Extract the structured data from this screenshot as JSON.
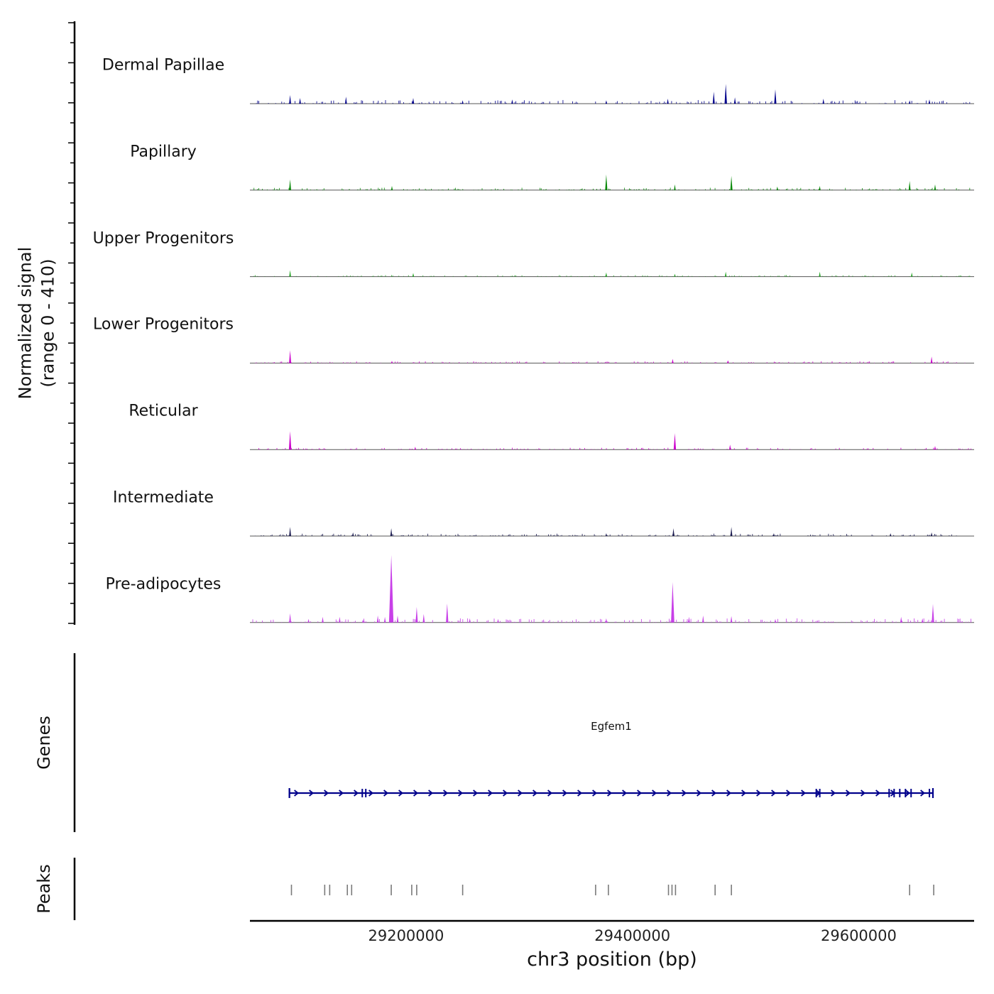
{
  "y_axis": {
    "line1": "Normalized signal",
    "line2": "(range 0 - 410)"
  },
  "x_axis": {
    "title": "chr3 position (bp)",
    "ticks": [
      29200000,
      29400000,
      29600000
    ],
    "range": [
      29062000,
      29702000
    ]
  },
  "sections": {
    "genes_label": "Genes",
    "peaks_label": "Peaks"
  },
  "gene": {
    "name": "Egfem1",
    "start": 29096900,
    "end": 29665600,
    "strand": "+",
    "color": "#00008b",
    "exons": [
      29096900,
      29161300,
      29164400,
      29562500,
      29565600,
      29626900,
      29631300,
      29636300,
      29641300,
      29646300,
      29662500,
      29665600
    ]
  },
  "peaks": {
    "color": "#7a7a7a",
    "positions": [
      29098700,
      29128100,
      29132500,
      29148100,
      29151900,
      29186900,
      29205000,
      29209400,
      29250000,
      29367500,
      29378800,
      29431900,
      29435000,
      29438100,
      29473100,
      29487500,
      29645000,
      29666300
    ]
  },
  "chart_data": {
    "type": "area",
    "title": "",
    "xlabel": "chr3 position (bp)",
    "ylabel": "Normalized signal (range 0 - 410)",
    "x_range": [
      29062000,
      29702000
    ],
    "y_range": [
      0,
      410
    ],
    "grid": false,
    "legend": "track labels on left",
    "tracks": [
      {
        "name": "Dermal Papillae",
        "color": "#00008b",
        "noise": 12,
        "peaks": [
          {
            "x": 29097500,
            "v": 45
          },
          {
            "x": 29106300,
            "v": 30
          },
          {
            "x": 29146900,
            "v": 37
          },
          {
            "x": 29206300,
            "v": 30
          },
          {
            "x": 29250000,
            "v": 18
          },
          {
            "x": 29293800,
            "v": 22
          },
          {
            "x": 29376900,
            "v": 18
          },
          {
            "x": 29431300,
            "v": 26
          },
          {
            "x": 29471900,
            "v": 63
          },
          {
            "x": 29482500,
            "v": 104
          },
          {
            "x": 29490600,
            "v": 33
          },
          {
            "x": 29526300,
            "v": 75
          },
          {
            "x": 29568800,
            "v": 26
          },
          {
            "x": 29645000,
            "v": 18
          },
          {
            "x": 29662500,
            "v": 22
          }
        ]
      },
      {
        "name": "Papillary",
        "color": "#0b8a0b",
        "noise": 8,
        "peaks": [
          {
            "x": 29097500,
            "v": 56
          },
          {
            "x": 29187500,
            "v": 22
          },
          {
            "x": 29376900,
            "v": 82
          },
          {
            "x": 29437500,
            "v": 30
          },
          {
            "x": 29487500,
            "v": 75
          },
          {
            "x": 29528100,
            "v": 19
          },
          {
            "x": 29565600,
            "v": 22
          },
          {
            "x": 29645000,
            "v": 48
          },
          {
            "x": 29667500,
            "v": 30
          }
        ]
      },
      {
        "name": "Upper Progenitors",
        "color": "#27a427",
        "noise": 5,
        "peaks": [
          {
            "x": 29097500,
            "v": 34
          },
          {
            "x": 29206300,
            "v": 19
          },
          {
            "x": 29376900,
            "v": 22
          },
          {
            "x": 29437500,
            "v": 15
          },
          {
            "x": 29482500,
            "v": 26
          },
          {
            "x": 29565600,
            "v": 26
          },
          {
            "x": 29646900,
            "v": 22
          }
        ]
      },
      {
        "name": "Lower Progenitors",
        "color": "#cc00cc",
        "noise": 6,
        "peaks": [
          {
            "x": 29097500,
            "v": 67
          },
          {
            "x": 29187500,
            "v": 12
          },
          {
            "x": 29435600,
            "v": 22
          },
          {
            "x": 29484400,
            "v": 15
          },
          {
            "x": 29664400,
            "v": 34
          }
        ]
      },
      {
        "name": "Reticular",
        "color": "#cc00cc",
        "noise": 6,
        "peaks": [
          {
            "x": 29097500,
            "v": 97
          },
          {
            "x": 29208100,
            "v": 15
          },
          {
            "x": 29437500,
            "v": 86
          },
          {
            "x": 29486300,
            "v": 26
          },
          {
            "x": 29667500,
            "v": 19
          }
        ]
      },
      {
        "name": "Intermediate",
        "color": "#1c1c50",
        "noise": 8,
        "peaks": [
          {
            "x": 29097500,
            "v": 48
          },
          {
            "x": 29153100,
            "v": 19
          },
          {
            "x": 29186900,
            "v": 41
          },
          {
            "x": 29376900,
            "v": 15
          },
          {
            "x": 29436300,
            "v": 41
          },
          {
            "x": 29487500,
            "v": 48
          },
          {
            "x": 29525000,
            "v": 15
          },
          {
            "x": 29628100,
            "v": 15
          },
          {
            "x": 29664400,
            "v": 19
          }
        ]
      },
      {
        "name": "Pre-adipocytes",
        "color": "#c840e8",
        "noise": 14,
        "peaks": [
          {
            "x": 29097500,
            "v": 48
          },
          {
            "x": 29113800,
            "v": 19
          },
          {
            "x": 29126300,
            "v": 30
          },
          {
            "x": 29141300,
            "v": 30
          },
          {
            "x": 29162500,
            "v": 19
          },
          {
            "x": 29175000,
            "v": 37
          },
          {
            "x": 29181300,
            "v": 30
          },
          {
            "x": 29186900,
            "v": 354
          },
          {
            "x": 29192500,
            "v": 37
          },
          {
            "x": 29209400,
            "v": 82
          },
          {
            "x": 29215600,
            "v": 45
          },
          {
            "x": 29236300,
            "v": 100
          },
          {
            "x": 29256300,
            "v": 22
          },
          {
            "x": 29281300,
            "v": 19
          },
          {
            "x": 29376900,
            "v": 22
          },
          {
            "x": 29435600,
            "v": 212
          },
          {
            "x": 29450000,
            "v": 30
          },
          {
            "x": 29462500,
            "v": 37
          },
          {
            "x": 29487500,
            "v": 34
          },
          {
            "x": 29526300,
            "v": 19
          },
          {
            "x": 29637500,
            "v": 30
          },
          {
            "x": 29656300,
            "v": 22
          },
          {
            "x": 29665600,
            "v": 97
          }
        ]
      }
    ]
  }
}
